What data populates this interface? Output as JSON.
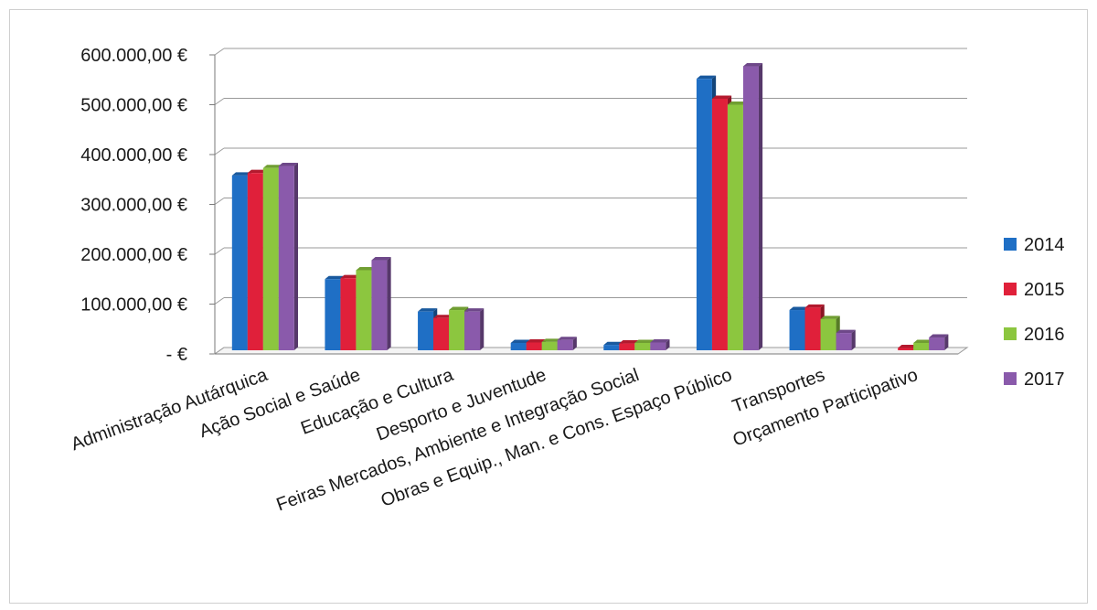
{
  "chart_data": {
    "type": "bar",
    "title": "",
    "xlabel": "",
    "ylabel": "",
    "ylim": [
      0,
      600000
    ],
    "y_ticks": [
      "-   €",
      "100.000,00 €",
      "200.000,00 €",
      "300.000,00 €",
      "400.000,00 €",
      "500.000,00 €",
      "600.000,00 €"
    ],
    "grid": true,
    "legend_position": "right",
    "categories": [
      "Administração Autárquica",
      "Ação Social e Saúde",
      "Educação e Cultura",
      "Desporto e Juventude",
      "Feiras Mercados, Ambiente e Integração Social",
      "Obras e Equip., Man. e Cons. Espaço Público",
      "Transportes",
      "Orçamento Participativo"
    ],
    "series": [
      {
        "name": "2014",
        "color": "#1F6FC5",
        "values": [
          358000,
          150000,
          85000,
          22000,
          18000,
          552000,
          88000,
          0
        ]
      },
      {
        "name": "2015",
        "color": "#E0203A",
        "values": [
          363000,
          152000,
          72000,
          23000,
          21000,
          512000,
          93000,
          12000
        ]
      },
      {
        "name": "2016",
        "color": "#8CC63F",
        "values": [
          373000,
          168000,
          88000,
          24000,
          22000,
          500000,
          70000,
          22000
        ]
      },
      {
        "name": "2017",
        "color": "#8A5AAB",
        "values": [
          377000,
          188000,
          85000,
          28000,
          23000,
          577000,
          42000,
          33000
        ]
      }
    ]
  }
}
